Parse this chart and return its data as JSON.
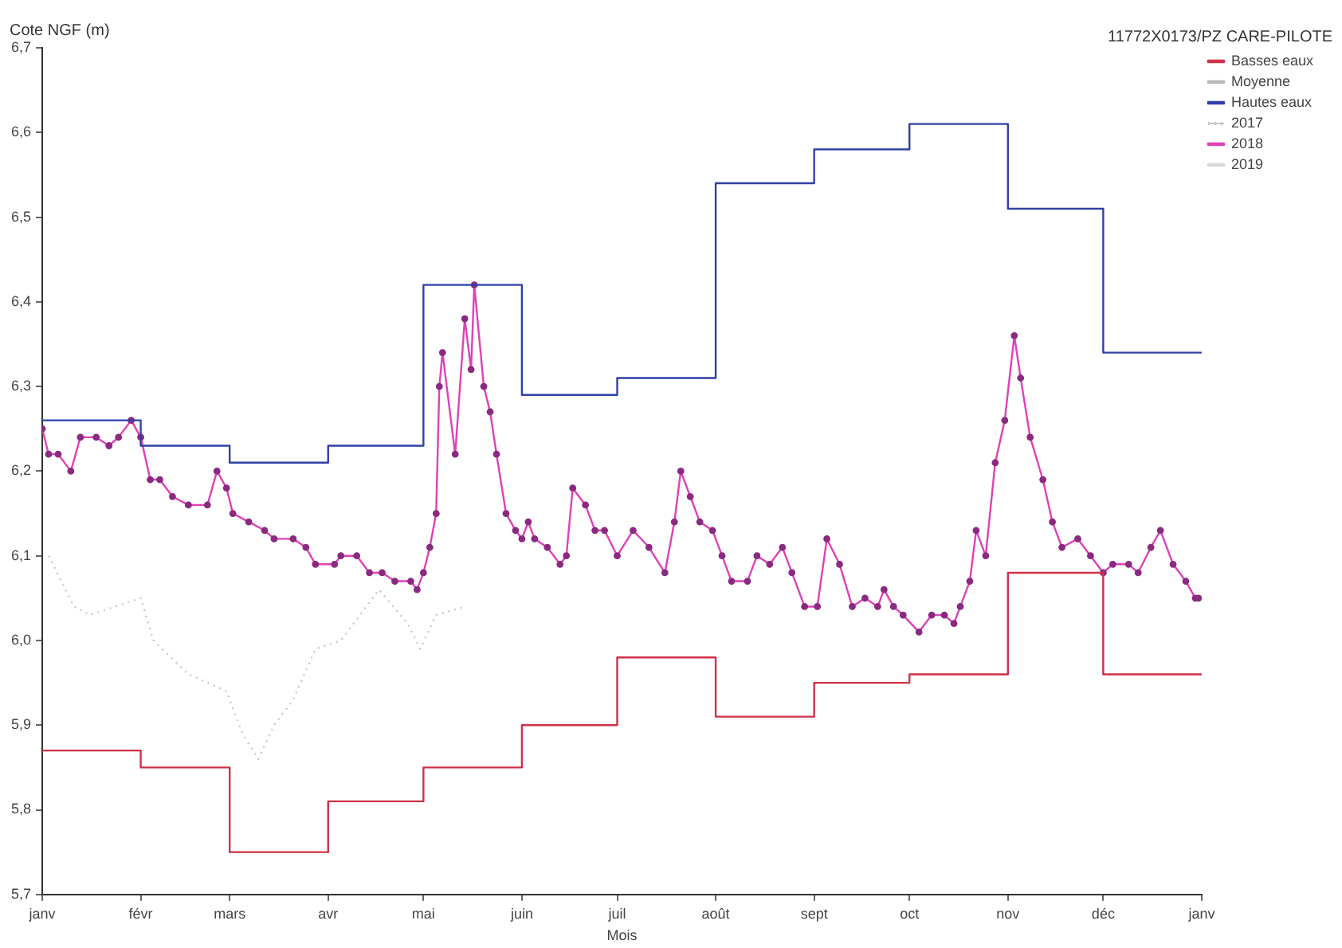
{
  "chart_data": {
    "type": "line",
    "xlabel": "Mois",
    "ylabel": "Cote NGF (m)",
    "legend_title": "11772X0173/PZ CARE-PILOTE",
    "legend": "top right",
    "grid": false,
    "xlim": [
      "2018-01-01",
      "2019-01-01"
    ],
    "xticks": [
      {
        "value": "2018-01-01",
        "label": "janv"
      },
      {
        "value": "2018-02-01",
        "label": "févr"
      },
      {
        "value": "2018-03-01",
        "label": "mars"
      },
      {
        "value": "2018-04-01",
        "label": "avr"
      },
      {
        "value": "2018-05-01",
        "label": "mai"
      },
      {
        "value": "2018-06-01",
        "label": "juin"
      },
      {
        "value": "2018-07-01",
        "label": "juil"
      },
      {
        "value": "2018-08-01",
        "label": "août"
      },
      {
        "value": "2018-09-01",
        "label": "sept"
      },
      {
        "value": "2018-10-01",
        "label": "oct"
      },
      {
        "value": "2018-11-01",
        "label": "nov"
      },
      {
        "value": "2018-12-01",
        "label": "déc"
      },
      {
        "value": "2019-01-01",
        "label": "janv"
      }
    ],
    "ylim": [
      5.7,
      6.7
    ],
    "yticks": [
      {
        "value": 5.7,
        "label": "5,7"
      },
      {
        "value": 5.8,
        "label": "5,8"
      },
      {
        "value": 5.9,
        "label": "5,9"
      },
      {
        "value": 6.0,
        "label": "6,0"
      },
      {
        "value": 6.1,
        "label": "6,1"
      },
      {
        "value": 6.2,
        "label": "6,2"
      },
      {
        "value": 6.3,
        "label": "6,3"
      },
      {
        "value": 6.4,
        "label": "6,4"
      },
      {
        "value": 6.5,
        "label": "6,5"
      },
      {
        "value": 6.6,
        "label": "6,6"
      },
      {
        "value": 6.7,
        "label": "6,7"
      }
    ],
    "series": [
      {
        "name": "Basses eaux",
        "type": "step",
        "color": "#d03048",
        "marker": "none",
        "x": [
          "2018-01-01",
          "2018-02-01",
          "2018-03-01",
          "2018-04-01",
          "2018-05-01",
          "2018-06-01",
          "2018-07-01",
          "2018-08-01",
          "2018-09-01",
          "2018-10-01",
          "2018-11-01",
          "2018-12-01",
          "2019-01-01"
        ],
        "values": [
          5.87,
          5.85,
          5.75,
          5.81,
          5.85,
          5.9,
          5.98,
          5.91,
          5.95,
          5.96,
          6.08,
          5.96,
          5.96
        ]
      },
      {
        "name": "Moyenne",
        "type": "line",
        "color": "#b8b8b8",
        "marker": "none"
      },
      {
        "name": "Hautes eaux",
        "type": "step",
        "color": "#3040a8",
        "marker": "none",
        "x": [
          "2018-01-01",
          "2018-02-01",
          "2018-03-01",
          "2018-04-01",
          "2018-05-01",
          "2018-06-01",
          "2018-07-01",
          "2018-08-01",
          "2018-09-01",
          "2018-10-01",
          "2018-11-01",
          "2018-12-01",
          "2019-01-01"
        ],
        "values": [
          6.26,
          6.23,
          6.21,
          6.23,
          6.42,
          6.29,
          6.31,
          6.54,
          6.58,
          6.61,
          6.51,
          6.34,
          6.34
        ]
      },
      {
        "name": "2017",
        "type": "line",
        "color": "#c8c8c8",
        "marker": "none",
        "line_style": "dotted",
        "x": [
          "2018-01-03",
          "2018-01-11",
          "2018-01-16",
          "2018-02-01",
          "2018-02-05",
          "2018-02-16",
          "2018-02-28",
          "2018-03-05",
          "2018-03-10",
          "2018-03-15",
          "2018-03-21",
          "2018-03-28",
          "2018-04-05",
          "2018-04-17",
          "2018-04-26",
          "2018-04-30",
          "2018-05-05",
          "2018-05-14"
        ],
        "values": [
          6.1,
          6.04,
          6.03,
          6.05,
          6.0,
          5.96,
          5.94,
          5.89,
          5.86,
          5.9,
          5.93,
          5.99,
          6.0,
          6.06,
          6.02,
          5.99,
          6.03,
          6.04
        ]
      },
      {
        "name": "2018",
        "type": "line",
        "color": "#e040b8",
        "marker": "circle",
        "x": [
          "2018-01-01",
          "2018-01-03",
          "2018-01-06",
          "2018-01-10",
          "2018-01-13",
          "2018-01-18",
          "2018-01-22",
          "2018-01-25",
          "2018-01-29",
          "2018-02-01",
          "2018-02-04",
          "2018-02-07",
          "2018-02-11",
          "2018-02-16",
          "2018-02-22",
          "2018-02-25",
          "2018-02-28",
          "2018-03-02",
          "2018-03-07",
          "2018-03-12",
          "2018-03-15",
          "2018-03-21",
          "2018-03-25",
          "2018-03-28",
          "2018-04-03",
          "2018-04-05",
          "2018-04-10",
          "2018-04-14",
          "2018-04-18",
          "2018-04-22",
          "2018-04-27",
          "2018-04-29",
          "2018-05-01",
          "2018-05-03",
          "2018-05-05",
          "2018-05-06",
          "2018-05-07",
          "2018-05-11",
          "2018-05-14",
          "2018-05-16",
          "2018-05-17",
          "2018-05-20",
          "2018-05-22",
          "2018-05-24",
          "2018-05-27",
          "2018-05-30",
          "2018-06-01",
          "2018-06-03",
          "2018-06-05",
          "2018-06-09",
          "2018-06-13",
          "2018-06-15",
          "2018-06-17",
          "2018-06-21",
          "2018-06-24",
          "2018-06-27",
          "2018-07-01",
          "2018-07-06",
          "2018-07-11",
          "2018-07-16",
          "2018-07-19",
          "2018-07-21",
          "2018-07-24",
          "2018-07-27",
          "2018-07-31",
          "2018-08-03",
          "2018-08-06",
          "2018-08-11",
          "2018-08-14",
          "2018-08-18",
          "2018-08-22",
          "2018-08-25",
          "2018-08-29",
          "2018-09-02",
          "2018-09-05",
          "2018-09-09",
          "2018-09-13",
          "2018-09-17",
          "2018-09-21",
          "2018-09-23",
          "2018-09-26",
          "2018-09-29",
          "2018-10-04",
          "2018-10-08",
          "2018-10-12",
          "2018-10-15",
          "2018-10-17",
          "2018-10-20",
          "2018-10-22",
          "2018-10-25",
          "2018-10-28",
          "2018-10-31",
          "2018-11-03",
          "2018-11-05",
          "2018-11-08",
          "2018-11-12",
          "2018-11-15",
          "2018-11-18",
          "2018-11-23",
          "2018-11-27",
          "2018-12-01",
          "2018-12-04",
          "2018-12-09",
          "2018-12-12",
          "2018-12-16",
          "2018-12-19",
          "2018-12-23",
          "2018-12-27",
          "2018-12-30",
          "2018-12-31"
        ],
        "values": [
          6.25,
          6.22,
          6.22,
          6.2,
          6.24,
          6.24,
          6.23,
          6.24,
          6.26,
          6.24,
          6.19,
          6.19,
          6.17,
          6.16,
          6.16,
          6.2,
          6.18,
          6.15,
          6.14,
          6.13,
          6.12,
          6.12,
          6.11,
          6.09,
          6.09,
          6.1,
          6.1,
          6.08,
          6.08,
          6.07,
          6.07,
          6.06,
          6.08,
          6.11,
          6.15,
          6.3,
          6.34,
          6.22,
          6.38,
          6.32,
          6.42,
          6.3,
          6.27,
          6.22,
          6.15,
          6.13,
          6.12,
          6.14,
          6.12,
          6.11,
          6.09,
          6.1,
          6.18,
          6.16,
          6.13,
          6.13,
          6.1,
          6.13,
          6.11,
          6.08,
          6.14,
          6.2,
          6.17,
          6.14,
          6.13,
          6.1,
          6.07,
          6.07,
          6.1,
          6.09,
          6.11,
          6.08,
          6.04,
          6.04,
          6.12,
          6.09,
          6.04,
          6.05,
          6.04,
          6.06,
          6.04,
          6.03,
          6.01,
          6.03,
          6.03,
          6.02,
          6.04,
          6.07,
          6.13,
          6.1,
          6.21,
          6.26,
          6.36,
          6.31,
          6.24,
          6.19,
          6.14,
          6.11,
          6.12,
          6.1,
          6.08,
          6.09,
          6.09,
          6.08,
          6.11,
          6.13,
          6.09,
          6.07,
          6.05,
          6.05
        ]
      },
      {
        "name": "2019",
        "type": "line",
        "color": "#d8d8d8",
        "marker": "none"
      }
    ]
  }
}
